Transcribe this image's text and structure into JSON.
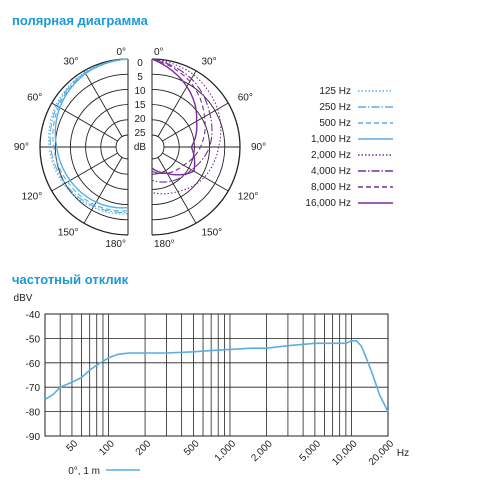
{
  "polar": {
    "title": "полярная диаграмма",
    "angle_labels_left": [
      "0°",
      "30°",
      "60°",
      "90°",
      "120°",
      "150°",
      "180°"
    ],
    "angle_labels_right": [
      "0°",
      "30°",
      "60°",
      "90°",
      "120°",
      "150°",
      "180°"
    ],
    "db_labels": [
      "0",
      "5",
      "10",
      "15",
      "20",
      "25",
      "dB"
    ],
    "rings_db": [
      0,
      5,
      10,
      15,
      20,
      25
    ],
    "legend": [
      {
        "label": "125 Hz",
        "color": "#5aaee0",
        "dash": "1.5,2"
      },
      {
        "label": "250 Hz",
        "color": "#5aaee0",
        "dash": "8,2,1.5,2"
      },
      {
        "label": "500 Hz",
        "color": "#5aaee0",
        "dash": "5,3"
      },
      {
        "label": "1,000 Hz",
        "color": "#5aaee0",
        "dash": ""
      },
      {
        "label": "2,000 Hz",
        "color": "#7b2c9a",
        "dash": "1.5,2"
      },
      {
        "label": "4,000 Hz",
        "color": "#7b2c9a",
        "dash": "8,2,1.5,2"
      },
      {
        "label": "8,000 Hz",
        "color": "#7b2c9a",
        "dash": "5,3"
      },
      {
        "label": "16,000 Hz",
        "color": "#7b2c9a",
        "dash": ""
      }
    ],
    "patterns": {
      "low_left": [
        {
          "freq": "125 Hz",
          "db": [
            0,
            0.5,
            1.5,
            3,
            4.5,
            6,
            7
          ]
        },
        {
          "freq": "250 Hz",
          "db": [
            0,
            0.7,
            2,
            3.5,
            5,
            6.5,
            7.5
          ]
        },
        {
          "freq": "500 Hz",
          "db": [
            0,
            0.8,
            2.5,
            4.5,
            6,
            7,
            8
          ]
        },
        {
          "freq": "1,000 Hz",
          "db": [
            0,
            1,
            3,
            5.5,
            7,
            8,
            9
          ]
        }
      ],
      "high_right": [
        {
          "freq": "2,000 Hz",
          "db": [
            0,
            1.5,
            4,
            7,
            9,
            12,
            14
          ]
        },
        {
          "freq": "4,000 Hz",
          "db": [
            0,
            3,
            7,
            10,
            14,
            16,
            18
          ]
        },
        {
          "freq": "8,000 Hz",
          "db": [
            0,
            4,
            9,
            13,
            17,
            19,
            21
          ]
        },
        {
          "freq": "16,000 Hz",
          "db": [
            0,
            6,
            12,
            16,
            13,
            19,
            22
          ]
        }
      ]
    }
  },
  "frequency": {
    "title": "частотный отклик",
    "chart_data": {
      "type": "line",
      "ylabel": "dBV",
      "xunit": "Hz",
      "xscale": "log",
      "xlim": [
        30,
        20000
      ],
      "ylim": [
        -90,
        -40
      ],
      "yticks": [
        -40,
        -50,
        -60,
        -70,
        -80,
        -90
      ],
      "ytick_labels": [
        "-40",
        "-50",
        "-60",
        "-70",
        "-80",
        "-90"
      ],
      "xticks": [
        50,
        100,
        200,
        500,
        1000,
        2000,
        5000,
        10000,
        20000
      ],
      "xtick_labels": [
        "50",
        "100",
        "200",
        "500",
        "1,000",
        "2,000",
        "5,000",
        "10,000",
        "20,000"
      ],
      "series": [
        {
          "name": "0°, 1 m",
          "color": "#5aaee0",
          "x": [
            30,
            35,
            40,
            50,
            60,
            70,
            80,
            100,
            120,
            150,
            200,
            300,
            500,
            700,
            1000,
            1500,
            2000,
            3000,
            5000,
            7000,
            9000,
            10000,
            11000,
            12000,
            13000,
            15000,
            17000,
            20000
          ],
          "y": [
            -75,
            -73,
            -70,
            -68,
            -66,
            -63,
            -61,
            -58,
            -56.5,
            -56,
            -56,
            -56,
            -55.5,
            -55,
            -54.5,
            -54,
            -54,
            -53,
            -52,
            -52,
            -52,
            -51,
            -51,
            -53,
            -57,
            -65,
            -73,
            -80
          ]
        }
      ]
    }
  }
}
